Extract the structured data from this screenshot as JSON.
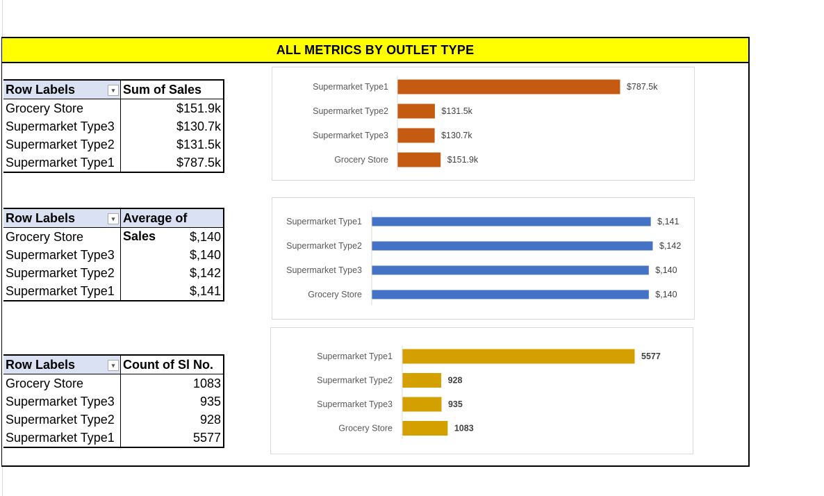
{
  "title": "ALL METRICS BY OUTLET TYPE",
  "tables": [
    {
      "header_left": "Row Labels",
      "header_right": "Sum of Sales",
      "rows": [
        {
          "label": "Grocery Store",
          "value": "$151.9k"
        },
        {
          "label": "Supermarket Type3",
          "value": "$130.7k"
        },
        {
          "label": "Supermarket Type2",
          "value": "$131.5k"
        },
        {
          "label": "Supermarket Type1",
          "value": "$787.5k"
        }
      ]
    },
    {
      "header_left": "Row Labels",
      "header_right": "Average of Sales",
      "rows": [
        {
          "label": "Grocery Store",
          "value": "$,140"
        },
        {
          "label": "Supermarket Type3",
          "value": "$,140"
        },
        {
          "label": "Supermarket Type2",
          "value": "$,142"
        },
        {
          "label": "Supermarket Type1",
          "value": "$,141"
        }
      ]
    },
    {
      "header_left": "Row Labels",
      "header_right": "Count of Sl No.",
      "rows": [
        {
          "label": "Grocery Store",
          "value": "1083"
        },
        {
          "label": "Supermarket Type3",
          "value": "935"
        },
        {
          "label": "Supermarket Type2",
          "value": "928"
        },
        {
          "label": "Supermarket Type1",
          "value": "5577"
        }
      ]
    }
  ],
  "chart_data": [
    {
      "type": "bar",
      "orientation": "horizontal",
      "categories": [
        "Supermarket Type1",
        "Supermarket Type2",
        "Supermarket Type3",
        "Grocery Store"
      ],
      "values": [
        787.5,
        131.5,
        130.7,
        151.9
      ],
      "labels": [
        "$787.5k",
        "$131.5k",
        "$130.7k",
        "$151.9k"
      ],
      "color": "#c55a11",
      "label_bold": false
    },
    {
      "type": "bar",
      "orientation": "horizontal",
      "categories": [
        "Supermarket Type1",
        "Supermarket Type2",
        "Supermarket Type3",
        "Grocery Store"
      ],
      "values": [
        141,
        142,
        140,
        140
      ],
      "labels": [
        "$,141",
        "$,142",
        "$,140",
        "$,140"
      ],
      "color": "#4472c4",
      "label_bold": false
    },
    {
      "type": "bar",
      "orientation": "horizontal",
      "categories": [
        "Supermarket Type1",
        "Supermarket Type2",
        "Supermarket Type3",
        "Grocery Store"
      ],
      "values": [
        5577,
        928,
        935,
        1083
      ],
      "labels": [
        "5577",
        "928",
        "935",
        "1083"
      ],
      "color": "#d4a000",
      "label_bold": true
    }
  ]
}
